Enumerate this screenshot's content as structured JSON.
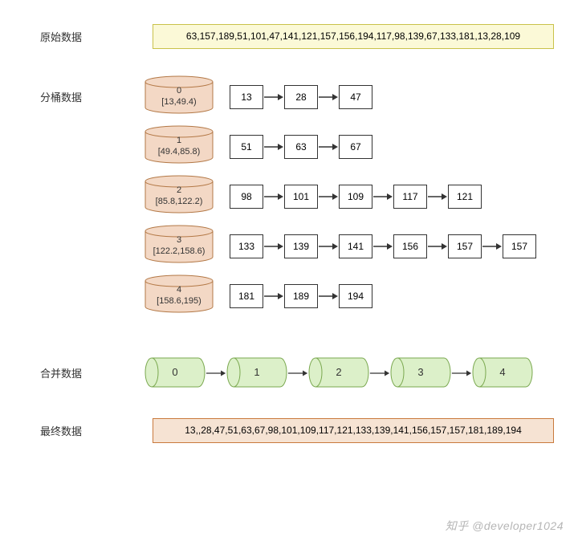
{
  "labels": {
    "raw": "原始数据",
    "split": "分桶数据",
    "merge": "合并数据",
    "final": "最终数据"
  },
  "raw_box": {
    "text": "63,157,189,51,101,47,141,121,157,156,194,117,98,139,67,133,181,13,28,109",
    "bg": "#fbf9d7",
    "border": "#c9c24a"
  },
  "final_box": {
    "text": "13,,28,47,51,63,67,98,101,109,117,121,133,139,141,156,157,157,181,189,194",
    "bg": "#f6e3d3",
    "border": "#c97a3d"
  },
  "buckets": [
    {
      "idx": "0",
      "range": "[13,49.4)",
      "items": [
        "13",
        "28",
        "47"
      ]
    },
    {
      "idx": "1",
      "range": "[49.4,85.8)",
      "items": [
        "51",
        "63",
        "67"
      ]
    },
    {
      "idx": "2",
      "range": "[85.8,122.2)",
      "items": [
        "98",
        "101",
        "109",
        "117",
        "121"
      ]
    },
    {
      "idx": "3",
      "range": "[122.2,158.6)",
      "items": [
        "133",
        "139",
        "141",
        "156",
        "157",
        "157"
      ]
    },
    {
      "idx": "4",
      "range": "[158.6,195)",
      "items": [
        "181",
        "189",
        "194"
      ]
    }
  ],
  "bucket_style": {
    "fill": "#f3d8c5",
    "stroke": "#b37846",
    "text": "#333333",
    "fontsize": 11
  },
  "merge_cyls": [
    "0",
    "1",
    "2",
    "3",
    "4"
  ],
  "merge_style": {
    "fill": "#dcf0c9",
    "stroke": "#7aa84f",
    "text": "#333333",
    "fontsize": 13
  },
  "arrow_color": "#333333",
  "watermark": "知乎 @developer1024"
}
